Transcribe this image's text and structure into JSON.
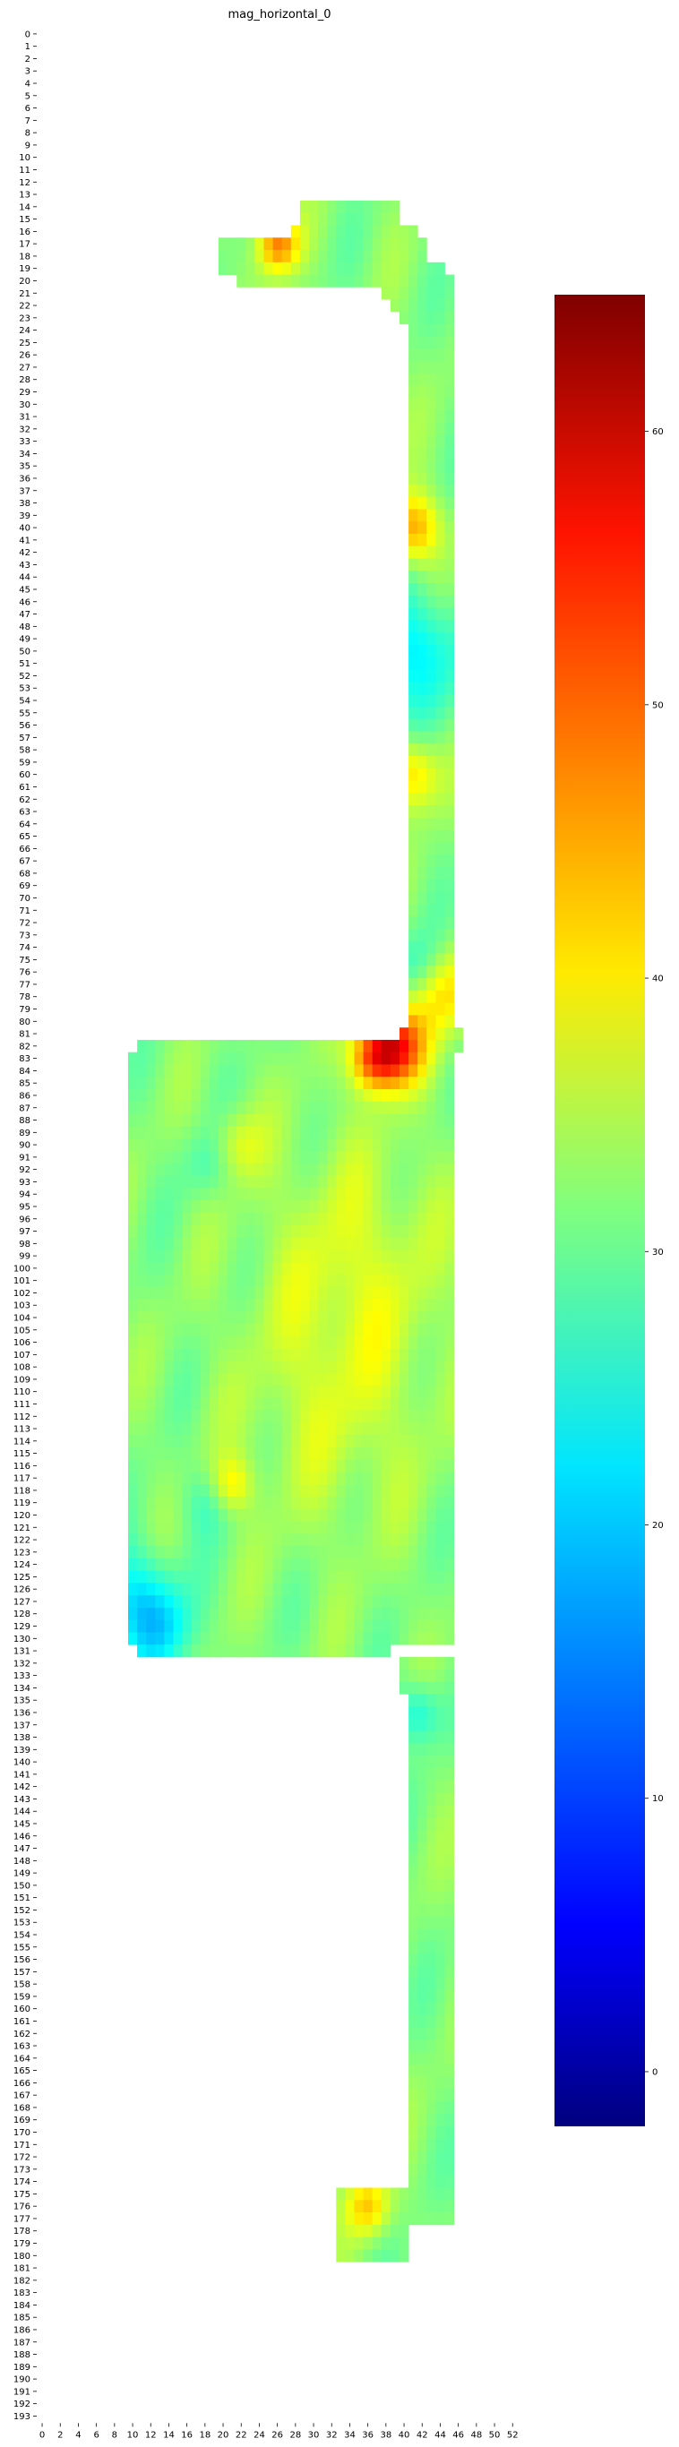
{
  "chart_data": {
    "type": "heatmap",
    "title": "mag_horizontal_0",
    "xlabel": "",
    "ylabel": "",
    "n_rows": 194,
    "n_cols": 54,
    "x_tick_step": 2,
    "y_tick_step": 1,
    "colormap": "jet",
    "colorbar": {
      "min": -2,
      "max": 65,
      "ticks": [
        0,
        10,
        20,
        30,
        40,
        50,
        60
      ]
    },
    "background": "#ffffff",
    "default_value": 32,
    "regions": [
      {
        "rows": [
          14,
          16
        ],
        "cols": [
          29,
          40
        ]
      },
      {
        "rows": [
          16,
          18
        ],
        "cols": [
          28,
          42
        ]
      },
      {
        "rows": [
          17,
          19
        ],
        "cols": [
          20,
          43
        ]
      },
      {
        "rows": [
          19,
          20
        ],
        "cols": [
          20,
          45
        ]
      },
      {
        "rows": [
          20,
          21
        ],
        "cols": [
          22,
          46
        ]
      },
      {
        "rows": [
          21,
          22
        ],
        "cols": [
          38,
          46
        ]
      },
      {
        "rows": [
          22,
          23
        ],
        "cols": [
          39,
          46
        ]
      },
      {
        "rows": [
          23,
          24
        ],
        "cols": [
          40,
          46
        ]
      },
      {
        "rows": [
          24,
          81
        ],
        "cols": [
          41,
          46
        ]
      },
      {
        "rows": [
          81,
          82
        ],
        "cols": [
          40,
          47
        ]
      },
      {
        "rows": [
          82,
          83
        ],
        "cols": [
          11,
          47
        ]
      },
      {
        "rows": [
          83,
          131
        ],
        "cols": [
          10,
          46
        ]
      },
      {
        "rows": [
          131,
          132
        ],
        "cols": [
          11,
          39
        ]
      },
      {
        "rows": [
          132,
          135
        ],
        "cols": [
          40,
          46
        ]
      },
      {
        "rows": [
          135,
          175
        ],
        "cols": [
          41,
          46
        ]
      },
      {
        "rows": [
          175,
          178
        ],
        "cols": [
          33,
          46
        ]
      },
      {
        "rows": [
          178,
          181
        ],
        "cols": [
          33,
          41
        ]
      }
    ],
    "hotspots": [
      {
        "row": 17.5,
        "col": 26.5,
        "value": 48,
        "radius": 1.6
      },
      {
        "row": 82.5,
        "col": 39.5,
        "value": 55,
        "radius": 2.2
      },
      {
        "row": 83.5,
        "col": 37.0,
        "value": 47,
        "radius": 1.8
      },
      {
        "row": 40.5,
        "col": 41.5,
        "value": 46,
        "radius": 2.0
      },
      {
        "row": 60.5,
        "col": 41.5,
        "value": 43,
        "radius": 2.0
      },
      {
        "row": 78.0,
        "col": 45.0,
        "value": 42,
        "radius": 2.5
      },
      {
        "row": 176.5,
        "col": 36.5,
        "value": 43,
        "radius": 1.7
      },
      {
        "row": 90.5,
        "col": 22.0,
        "value": 38,
        "radius": 2.0
      },
      {
        "row": 118.0,
        "col": 21.5,
        "value": 40,
        "radius": 1.6
      },
      {
        "row": 100.0,
        "col": 35.0,
        "value": 37,
        "radius": 7.0
      },
      {
        "row": 112.0,
        "col": 33.0,
        "value": 36,
        "radius": 7.0
      },
      {
        "row": 50.5,
        "col": 42.0,
        "value": 22,
        "radius": 3.5
      },
      {
        "row": 76.0,
        "col": 42.0,
        "value": 26,
        "radius": 2.0
      },
      {
        "row": 127.5,
        "col": 11.0,
        "value": 22,
        "radius": 3.0
      },
      {
        "row": 130.0,
        "col": 14.0,
        "value": 25,
        "radius": 2.5
      },
      {
        "row": 136.5,
        "col": 42.0,
        "value": 24,
        "radius": 1.8
      },
      {
        "row": 92.0,
        "col": 19.0,
        "value": 28,
        "radius": 2.0
      },
      {
        "row": 119.5,
        "col": 18.5,
        "value": 28,
        "radius": 2.0
      }
    ]
  }
}
